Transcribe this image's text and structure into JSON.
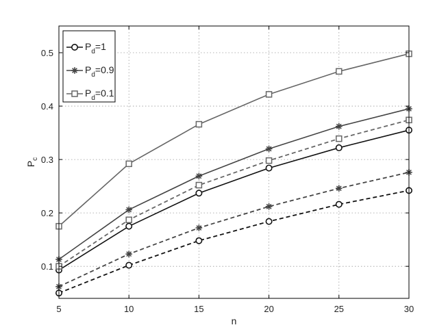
{
  "chart_data": {
    "type": "line",
    "xlabel": "n",
    "ylabel": "P",
    "ylabel_sub": "c",
    "xlim": [
      5,
      30
    ],
    "ylim": [
      0.04,
      0.55
    ],
    "x_ticks": [
      5,
      10,
      15,
      20,
      25,
      30
    ],
    "y_ticks": [
      0.1,
      0.2,
      0.3,
      0.4,
      0.5
    ],
    "x_tick_labels": [
      "5",
      "10",
      "15",
      "20",
      "25",
      "30"
    ],
    "y_tick_labels": [
      "0.1",
      "0.2",
      "0.3",
      "0.4",
      "0.5"
    ],
    "grid": true,
    "legend_position": "top-left",
    "x": [
      5,
      10,
      15,
      20,
      25,
      30
    ],
    "legend": [
      {
        "main": "P",
        "sub": "d",
        "eq": "=1",
        "marker": "circle",
        "color": "#111111"
      },
      {
        "main": "P",
        "sub": "d",
        "eq": "=0.9",
        "marker": "star",
        "color": "#444444"
      },
      {
        "main": "P",
        "sub": "d",
        "eq": "=0.1",
        "marker": "square",
        "color": "#666666"
      }
    ],
    "series": [
      {
        "values": [
          0.093,
          0.175,
          0.237,
          0.284,
          0.322,
          0.355
        ],
        "marker": "circle",
        "color": "#111111",
        "dash": "solid"
      },
      {
        "values": [
          0.113,
          0.206,
          0.269,
          0.32,
          0.362,
          0.395
        ],
        "marker": "star",
        "color": "#444444",
        "dash": "solid"
      },
      {
        "values": [
          0.175,
          0.292,
          0.366,
          0.422,
          0.465,
          0.498
        ],
        "marker": "square",
        "color": "#666666",
        "dash": "solid"
      },
      {
        "values": [
          0.05,
          0.102,
          0.148,
          0.184,
          0.216,
          0.242
        ],
        "marker": "circle",
        "color": "#111111",
        "dash": "dashed"
      },
      {
        "values": [
          0.062,
          0.123,
          0.172,
          0.212,
          0.246,
          0.276
        ],
        "marker": "star",
        "color": "#444444",
        "dash": "dashed"
      },
      {
        "values": [
          0.1,
          0.187,
          0.252,
          0.298,
          0.339,
          0.374
        ],
        "marker": "square",
        "color": "#666666",
        "dash": "dashed"
      }
    ]
  }
}
